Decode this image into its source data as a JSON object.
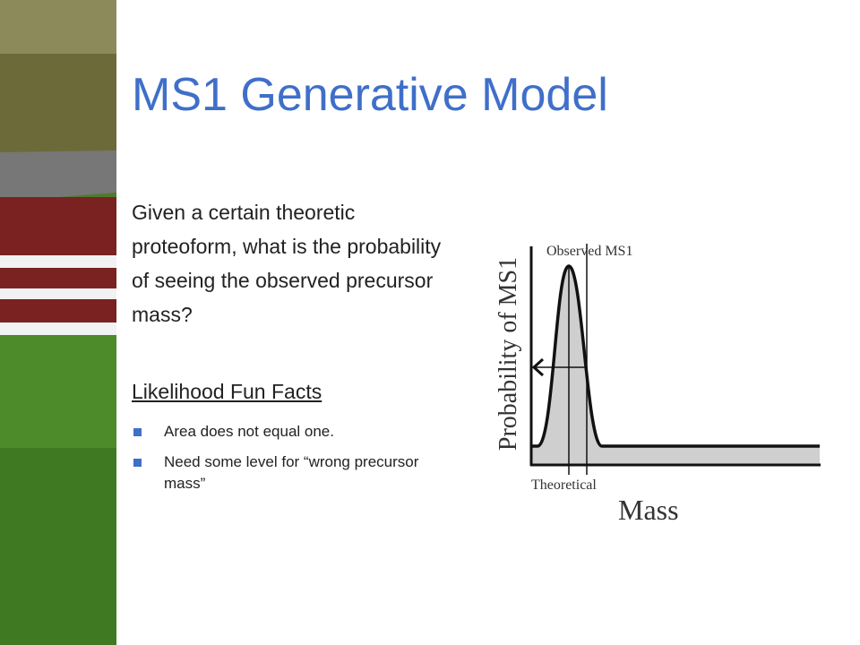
{
  "slide": {
    "title": "MS1 Generative Model",
    "body": "Given a certain theoretic proteoform, what is the probability of seeing the observed precursor mass?",
    "subheading": "Likelihood Fun Facts",
    "bullets": [
      "Area does not equal one.",
      "Need some level for “wrong precursor mass”"
    ],
    "figure": {
      "observed_label": "Observed MS1",
      "y_axis_label": "Probability of MS1",
      "theoretical_label": "Theoretical",
      "x_axis_label": "Mass"
    }
  }
}
